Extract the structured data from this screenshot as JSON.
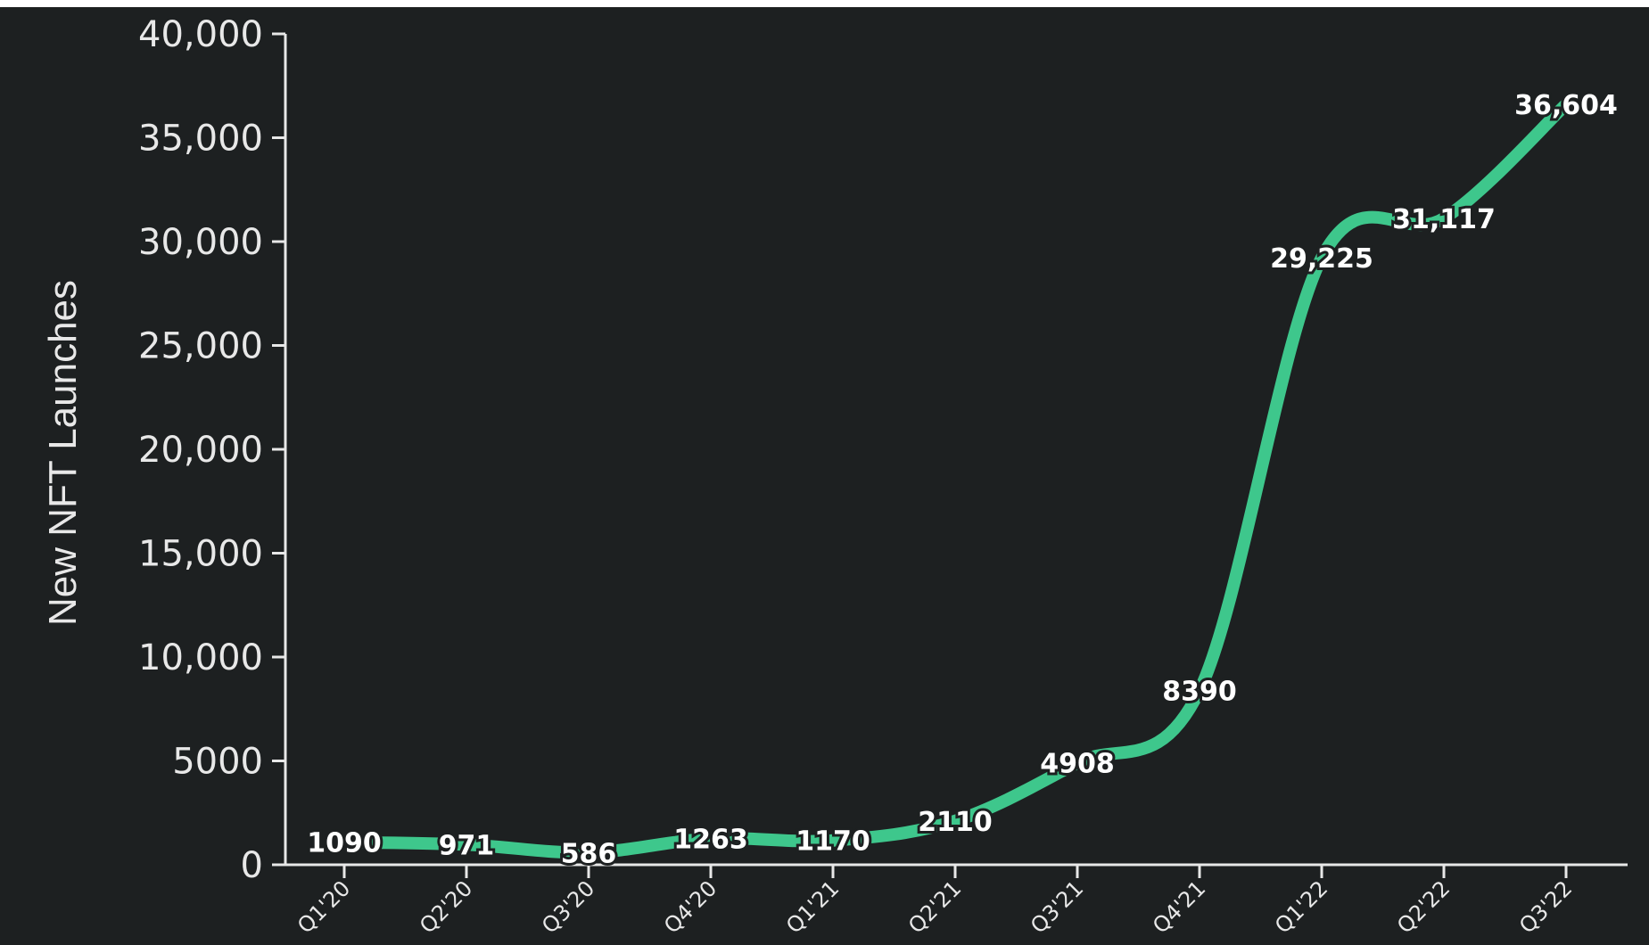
{
  "chart_data": {
    "type": "line",
    "categories": [
      "Q1'20",
      "Q2'20",
      "Q3'20",
      "Q4'20",
      "Q1'21",
      "Q2'21",
      "Q3'21",
      "Q4'21",
      "Q1'22",
      "Q2'22",
      "Q3'22"
    ],
    "series": [
      {
        "values": [
          1090,
          971,
          586,
          1263,
          1170,
          2110,
          4908,
          8390,
          29225,
          31117,
          36604
        ],
        "labels": [
          "1090",
          "971",
          "586",
          "1263",
          "1170",
          "2110",
          "4908",
          "8390",
          "29,225",
          "31,117",
          "36,604"
        ]
      }
    ],
    "ylabel": "New NFT Launches",
    "ylim": [
      0,
      40000
    ],
    "yticks": [
      {
        "value": 0,
        "label": "0"
      },
      {
        "value": 5000,
        "label": "5000"
      },
      {
        "value": 10000,
        "label": "10,000"
      },
      {
        "value": 15000,
        "label": "15,000"
      },
      {
        "value": 20000,
        "label": "20,000"
      },
      {
        "value": 25000,
        "label": "25,000"
      },
      {
        "value": 30000,
        "label": "30,000"
      },
      {
        "value": 35000,
        "label": "35,000"
      },
      {
        "value": 40000,
        "label": "40,000"
      }
    ],
    "grid": false,
    "line_color": "#3ec78c",
    "background_color": "#1d2021",
    "axis_color": "#e8e8e8",
    "label_color": "#ffffff"
  }
}
